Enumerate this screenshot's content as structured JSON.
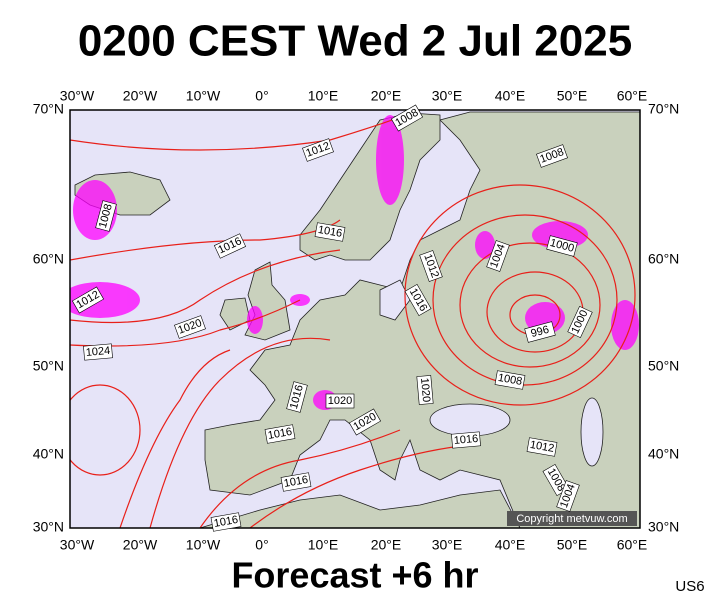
{
  "title": "0200 CEST Wed 2 Jul 2025",
  "longitude_labels": [
    "30°W",
    "20°W",
    "10°W",
    "0°",
    "10°E",
    "20°E",
    "30°E",
    "40°E",
    "50°E",
    "60°E"
  ],
  "latitude_labels": [
    "70°N",
    "60°N",
    "50°N",
    "40°N",
    "30°N"
  ],
  "isobar_labels": [
    1008,
    1012,
    1008,
    1008,
    1016,
    1016,
    1000,
    1004,
    1012,
    1012,
    1016,
    1020,
    996,
    1000,
    1024,
    1008,
    1020,
    1016,
    1020,
    1020,
    1016,
    1016,
    1012,
    1008,
    1004,
    1016,
    1016
  ],
  "copyright": "Copyright metvuw.com",
  "footer": "Forecast +6 hr",
  "code": "US6"
}
